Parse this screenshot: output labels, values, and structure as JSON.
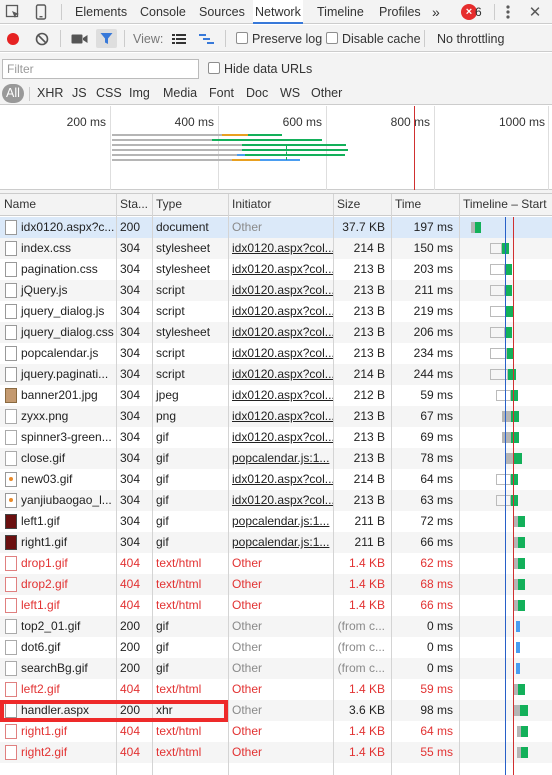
{
  "tabs": [
    "Elements",
    "Console",
    "Sources",
    "Network",
    "Timeline",
    "Profiles"
  ],
  "active_tab": "Network",
  "more_tabs": "»",
  "error_count": "6",
  "toolbar": {
    "view_label": "View:",
    "preserve_log": "Preserve log",
    "disable_cache": "Disable cache",
    "throttling": "No throttling"
  },
  "filter": {
    "placeholder": "Filter",
    "hide_data_urls": "Hide data URLs"
  },
  "type_filters": [
    "All",
    "XHR",
    "JS",
    "CSS",
    "Img",
    "Media",
    "Font",
    "Doc",
    "WS",
    "Other"
  ],
  "overview": {
    "ticks": [
      "200 ms",
      "400 ms",
      "600 ms",
      "800 ms",
      "1000 ms"
    ]
  },
  "columns": {
    "name": "Name",
    "status": "Sta...",
    "type": "Type",
    "initiator": "Initiator",
    "size": "Size",
    "time": "Time",
    "timeline": "Timeline – Start"
  },
  "colors": {
    "accent": "#3879d9",
    "error": "#e23232",
    "waiting": "#b5b5b5",
    "receive_doc": "#4a9df0",
    "receive_res": "#13b05a",
    "highlight": "#ee2a2a",
    "dom_line": "#2860c8",
    "load_line": "#d03030"
  },
  "requests": [
    {
      "name": "idx0120.aspx?c...",
      "status": "200",
      "type": "document",
      "initiator": "Other",
      "size": "37.7 KB",
      "time": "197 ms",
      "icon": "file",
      "start": 0.06,
      "wait": 0.05,
      "recv": 0.06,
      "recv_color": "#13b05a",
      "selected": true
    },
    {
      "name": "index.css",
      "status": "304",
      "type": "stylesheet",
      "initiator": "idx0120.aspx?col...",
      "size": "214 B",
      "time": "150 ms",
      "icon": "file",
      "start": 0.27,
      "wait": 0.13,
      "recv": 0.07,
      "recv_color": "#13b05a"
    },
    {
      "name": "pagination.css",
      "status": "304",
      "type": "stylesheet",
      "initiator": "idx0120.aspx?col...",
      "size": "213 B",
      "time": "203 ms",
      "icon": "file",
      "start": 0.27,
      "wait": 0.16,
      "recv": 0.08,
      "recv_color": "#13b05a"
    },
    {
      "name": "jQuery.js",
      "status": "304",
      "type": "script",
      "initiator": "idx0120.aspx?col...",
      "size": "213 B",
      "time": "211 ms",
      "icon": "file",
      "start": 0.27,
      "wait": 0.16,
      "recv": 0.08,
      "recv_color": "#13b05a"
    },
    {
      "name": "jquery_dialog.js",
      "status": "304",
      "type": "script",
      "initiator": "idx0120.aspx?col...",
      "size": "213 B",
      "time": "219 ms",
      "icon": "file",
      "start": 0.27,
      "wait": 0.17,
      "recv": 0.08,
      "recv_color": "#13b05a"
    },
    {
      "name": "jquery_dialog.css",
      "status": "304",
      "type": "stylesheet",
      "initiator": "idx0120.aspx?col...",
      "size": "213 B",
      "time": "206 ms",
      "icon": "file",
      "start": 0.27,
      "wait": 0.16,
      "recv": 0.08,
      "recv_color": "#13b05a"
    },
    {
      "name": "popcalendar.js",
      "status": "304",
      "type": "script",
      "initiator": "idx0120.aspx?col...",
      "size": "213 B",
      "time": "234 ms",
      "icon": "file",
      "start": 0.27,
      "wait": 0.18,
      "recv": 0.08,
      "recv_color": "#13b05a"
    },
    {
      "name": "jquery.paginati...",
      "status": "304",
      "type": "script",
      "initiator": "idx0120.aspx?col...",
      "size": "214 B",
      "time": "244 ms",
      "icon": "file",
      "start": 0.27,
      "wait": 0.19,
      "recv": 0.09,
      "recv_color": "#13b05a"
    },
    {
      "name": "banner201.jpg",
      "status": "304",
      "type": "jpeg",
      "initiator": "idx0120.aspx?col...",
      "size": "212 B",
      "time": "59 ms",
      "icon": "brown",
      "start": 0.33,
      "wait": 0.16,
      "recv": 0.08,
      "recv_color": "#13b05a"
    },
    {
      "name": "zyxx.png",
      "status": "304",
      "type": "png",
      "initiator": "idx0120.aspx?col...",
      "size": "213 B",
      "time": "67 ms",
      "icon": "img",
      "start": 0.4,
      "wait": 0.1,
      "recv": 0.08,
      "recv_color": "#13b05a"
    },
    {
      "name": "spinner3-green...",
      "status": "304",
      "type": "gif",
      "initiator": "idx0120.aspx?col...",
      "size": "213 B",
      "time": "69 ms",
      "icon": "img",
      "start": 0.4,
      "wait": 0.1,
      "recv": 0.08,
      "recv_color": "#13b05a"
    },
    {
      "name": "close.gif",
      "status": "304",
      "type": "gif",
      "initiator": "popcalendar.js:1...",
      "size": "213 B",
      "time": "78 ms",
      "icon": "img",
      "start": 0.44,
      "wait": 0.09,
      "recv": 0.08,
      "recv_color": "#13b05a"
    },
    {
      "name": "new03.gif",
      "status": "304",
      "type": "gif",
      "initiator": "idx0120.aspx?col...",
      "size": "214 B",
      "time": "64 ms",
      "icon": "dot",
      "start": 0.33,
      "wait": 0.16,
      "recv": 0.08,
      "recv_color": "#13b05a"
    },
    {
      "name": "yanjiubaogao_l...",
      "status": "304",
      "type": "gif",
      "initiator": "idx0120.aspx?col...",
      "size": "213 B",
      "time": "63 ms",
      "icon": "dot",
      "start": 0.33,
      "wait": 0.16,
      "recv": 0.08,
      "recv_color": "#13b05a"
    },
    {
      "name": "left1.gif",
      "status": "304",
      "type": "gif",
      "initiator": "popcalendar.js:1...",
      "size": "211 B",
      "time": "72 ms",
      "icon": "dark",
      "start": 0.53,
      "wait": 0.04,
      "recv": 0.08,
      "recv_color": "#13b05a"
    },
    {
      "name": "right1.gif",
      "status": "304",
      "type": "gif",
      "initiator": "popcalendar.js:1...",
      "size": "211 B",
      "time": "66 ms",
      "icon": "dark",
      "start": 0.53,
      "wait": 0.04,
      "recv": 0.08,
      "recv_color": "#13b05a"
    },
    {
      "name": "drop1.gif",
      "status": "404",
      "type": "text/html",
      "initiator": "Other",
      "size": "1.4 KB",
      "time": "62 ms",
      "icon": "ferr",
      "start": 0.53,
      "wait": 0.04,
      "recv": 0.08,
      "recv_color": "#13b05a",
      "error": true
    },
    {
      "name": "drop2.gif",
      "status": "404",
      "type": "text/html",
      "initiator": "Other",
      "size": "1.4 KB",
      "time": "68 ms",
      "icon": "ferr",
      "start": 0.53,
      "wait": 0.04,
      "recv": 0.08,
      "recv_color": "#13b05a",
      "error": true
    },
    {
      "name": "left1.gif",
      "status": "404",
      "type": "text/html",
      "initiator": "Other",
      "size": "1.4 KB",
      "time": "66 ms",
      "icon": "ferr",
      "start": 0.53,
      "wait": 0.04,
      "recv": 0.08,
      "recv_color": "#13b05a",
      "error": true
    },
    {
      "name": "top2_01.gif",
      "status": "200",
      "type": "gif",
      "initiator": "Other",
      "size": "(from c...",
      "time": "0 ms",
      "icon": "img",
      "start": 0.55,
      "wait": 0,
      "recv": 0.03,
      "recv_color": "#4a9df0"
    },
    {
      "name": "dot6.gif",
      "status": "200",
      "type": "gif",
      "initiator": "Other",
      "size": "(from c...",
      "time": "0 ms",
      "icon": "img",
      "start": 0.55,
      "wait": 0,
      "recv": 0.03,
      "recv_color": "#4a9df0"
    },
    {
      "name": "searchBg.gif",
      "status": "200",
      "type": "gif",
      "initiator": "Other",
      "size": "(from c...",
      "time": "0 ms",
      "icon": "img",
      "start": 0.55,
      "wait": 0,
      "recv": 0.03,
      "recv_color": "#4a9df0"
    },
    {
      "name": "left2.gif",
      "status": "404",
      "type": "text/html",
      "initiator": "Other",
      "size": "1.4 KB",
      "time": "59 ms",
      "icon": "ferr",
      "start": 0.53,
      "wait": 0.04,
      "recv": 0.08,
      "recv_color": "#13b05a",
      "error": true
    },
    {
      "name": "handler.aspx",
      "status": "200",
      "type": "xhr",
      "initiator": "Other",
      "size": "3.6 KB",
      "time": "98 ms",
      "icon": "file",
      "start": 0.53,
      "wait": 0.06,
      "recv": 0.09,
      "recv_color": "#13b05a"
    },
    {
      "name": "right1.gif",
      "status": "404",
      "type": "text/html",
      "initiator": "Other",
      "size": "1.4 KB",
      "time": "64 ms",
      "icon": "ferr",
      "start": 0.56,
      "wait": 0.04,
      "recv": 0.08,
      "recv_color": "#13b05a",
      "error": true
    },
    {
      "name": "right2.gif",
      "status": "404",
      "type": "text/html",
      "initiator": "Other",
      "size": "1.4 KB",
      "time": "55 ms",
      "icon": "ferr",
      "start": 0.56,
      "wait": 0.04,
      "recv": 0.08,
      "recv_color": "#13b05a",
      "error": true
    }
  ]
}
